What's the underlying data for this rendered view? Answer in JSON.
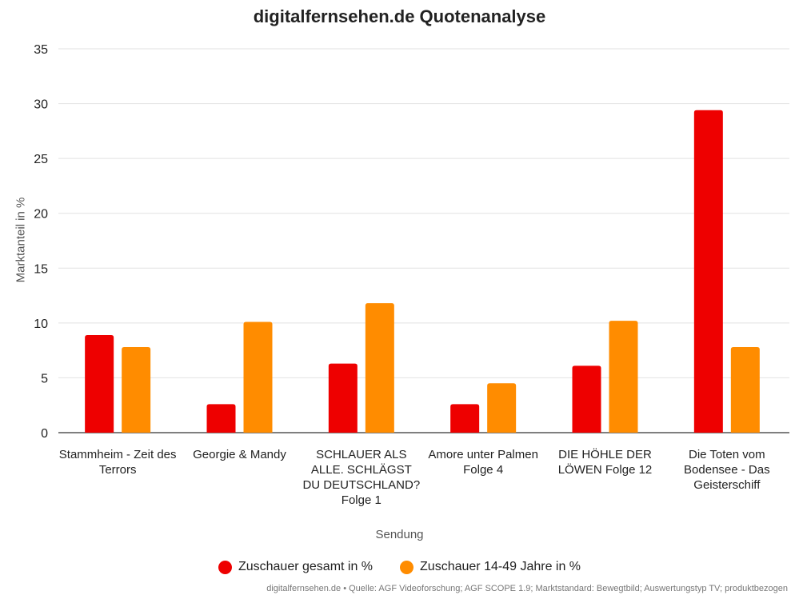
{
  "chart_data": {
    "type": "bar",
    "title": "digitalfernsehen.de Quotenanalyse",
    "xlabel": "Sendung",
    "ylabel": "Marktanteil in %",
    "ylim": [
      0,
      35
    ],
    "yticks": [
      0,
      5,
      10,
      15,
      20,
      25,
      30,
      35
    ],
    "grid": true,
    "legend_position": "bottom",
    "categories": [
      "Stammheim - Zeit des Terrors",
      "Georgie & Mandy",
      "SCHLAUER ALS ALLE. SCHLÄGST DU DEUTSCHLAND? Folge 1",
      "Amore unter Palmen Folge 4",
      "DIE HÖHLE DER LÖWEN Folge 12",
      "Die Toten vom Bodensee - Das Geisterschiff"
    ],
    "series": [
      {
        "name": "Zuschauer gesamt in %",
        "color": "#ee0000",
        "values": [
          8.9,
          2.6,
          6.3,
          2.6,
          6.1,
          29.4
        ]
      },
      {
        "name": "Zuschauer 14-49 Jahre in %",
        "color": "#ff8c00",
        "values": [
          7.8,
          10.1,
          11.8,
          4.5,
          10.2,
          7.8
        ]
      }
    ]
  },
  "source": "digitalfernsehen.de • Quelle: AGF Videoforschung; AGF SCOPE 1.9; Marktstandard: Bewegtbild; Auswertungstyp TV; produktbezogen"
}
